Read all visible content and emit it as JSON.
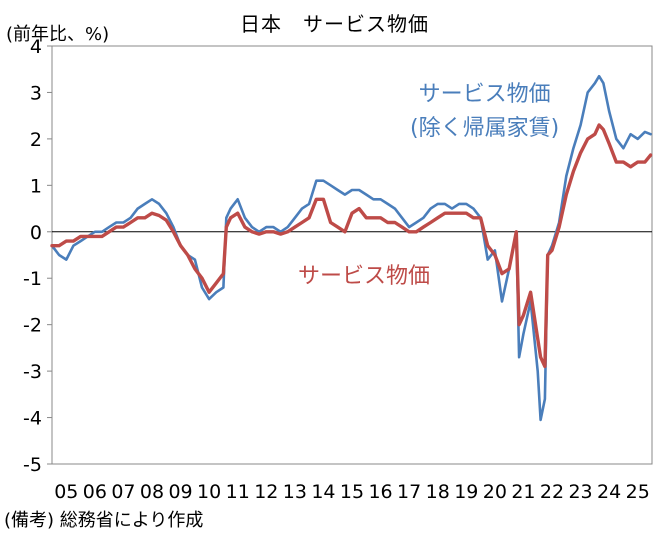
{
  "chart_data": {
    "type": "line",
    "title": "日本　サービス物価",
    "ylabel": "(前年比、%)",
    "source": "(備考) 総務省により作成",
    "ylim": [
      -5,
      4
    ],
    "yticks": [
      "4",
      "3",
      "2",
      "1",
      "0",
      "-1",
      "-2",
      "-3",
      "-4",
      "-5"
    ],
    "xticks": [
      "05",
      "06",
      "07",
      "08",
      "09",
      "10",
      "11",
      "12",
      "13",
      "14",
      "15",
      "16",
      "17",
      "18",
      "19",
      "20",
      "21",
      "22",
      "23",
      "24",
      "25"
    ],
    "grid": false,
    "annotations": {
      "blue_line1": "サービス物価",
      "blue_line2": "(除く帰属家賃)",
      "red": "サービス物価"
    },
    "series": [
      {
        "name": "サービス物価(除く帰属家賃)",
        "color": "#4A7EBB",
        "points": [
          [
            2005.0,
            -0.3
          ],
          [
            2005.25,
            -0.5
          ],
          [
            2005.5,
            -0.6
          ],
          [
            2005.75,
            -0.3
          ],
          [
            2006.0,
            -0.2
          ],
          [
            2006.25,
            -0.1
          ],
          [
            2006.5,
            0.0
          ],
          [
            2006.75,
            0.0
          ],
          [
            2007.0,
            0.1
          ],
          [
            2007.25,
            0.2
          ],
          [
            2007.5,
            0.2
          ],
          [
            2007.75,
            0.3
          ],
          [
            2008.0,
            0.5
          ],
          [
            2008.25,
            0.6
          ],
          [
            2008.5,
            0.7
          ],
          [
            2008.75,
            0.6
          ],
          [
            2009.0,
            0.4
          ],
          [
            2009.25,
            0.1
          ],
          [
            2009.5,
            -0.3
          ],
          [
            2009.75,
            -0.5
          ],
          [
            2010.0,
            -0.6
          ],
          [
            2010.25,
            -1.2
          ],
          [
            2010.5,
            -1.45
          ],
          [
            2010.75,
            -1.3
          ],
          [
            2011.0,
            -1.2
          ],
          [
            2011.1,
            0.3
          ],
          [
            2011.25,
            0.5
          ],
          [
            2011.5,
            0.7
          ],
          [
            2011.75,
            0.3
          ],
          [
            2012.0,
            0.1
          ],
          [
            2012.25,
            0.0
          ],
          [
            2012.5,
            0.1
          ],
          [
            2012.75,
            0.1
          ],
          [
            2013.0,
            0.0
          ],
          [
            2013.25,
            0.1
          ],
          [
            2013.5,
            0.3
          ],
          [
            2013.75,
            0.5
          ],
          [
            2014.0,
            0.6
          ],
          [
            2014.25,
            1.1
          ],
          [
            2014.5,
            1.1
          ],
          [
            2014.75,
            1.0
          ],
          [
            2015.0,
            0.9
          ],
          [
            2015.25,
            0.8
          ],
          [
            2015.5,
            0.9
          ],
          [
            2015.75,
            0.9
          ],
          [
            2016.0,
            0.8
          ],
          [
            2016.25,
            0.7
          ],
          [
            2016.5,
            0.7
          ],
          [
            2016.75,
            0.6
          ],
          [
            2017.0,
            0.5
          ],
          [
            2017.25,
            0.3
          ],
          [
            2017.5,
            0.1
          ],
          [
            2017.75,
            0.2
          ],
          [
            2018.0,
            0.3
          ],
          [
            2018.25,
            0.5
          ],
          [
            2018.5,
            0.6
          ],
          [
            2018.75,
            0.6
          ],
          [
            2019.0,
            0.5
          ],
          [
            2019.25,
            0.6
          ],
          [
            2019.5,
            0.6
          ],
          [
            2019.75,
            0.5
          ],
          [
            2020.0,
            0.3
          ],
          [
            2020.25,
            -0.6
          ],
          [
            2020.5,
            -0.4
          ],
          [
            2020.75,
            -1.5
          ],
          [
            2021.0,
            -0.8
          ],
          [
            2021.25,
            0.0
          ],
          [
            2021.35,
            -2.7
          ],
          [
            2021.5,
            -2.2
          ],
          [
            2021.75,
            -1.5
          ],
          [
            2022.0,
            -3.0
          ],
          [
            2022.1,
            -4.05
          ],
          [
            2022.25,
            -3.6
          ],
          [
            2022.35,
            -0.5
          ],
          [
            2022.5,
            -0.3
          ],
          [
            2022.75,
            0.2
          ],
          [
            2023.0,
            1.2
          ],
          [
            2023.25,
            1.8
          ],
          [
            2023.5,
            2.3
          ],
          [
            2023.75,
            3.0
          ],
          [
            2024.0,
            3.2
          ],
          [
            2024.15,
            3.35
          ],
          [
            2024.3,
            3.2
          ],
          [
            2024.5,
            2.6
          ],
          [
            2024.75,
            2.0
          ],
          [
            2025.0,
            1.8
          ],
          [
            2025.25,
            2.1
          ],
          [
            2025.5,
            2.0
          ],
          [
            2025.75,
            2.15
          ],
          [
            2025.95,
            2.1
          ]
        ]
      },
      {
        "name": "サービス物価",
        "color": "#BE4B48",
        "points": [
          [
            2005.0,
            -0.3
          ],
          [
            2005.25,
            -0.3
          ],
          [
            2005.5,
            -0.2
          ],
          [
            2005.75,
            -0.2
          ],
          [
            2006.0,
            -0.1
          ],
          [
            2006.25,
            -0.1
          ],
          [
            2006.5,
            -0.1
          ],
          [
            2006.75,
            -0.1
          ],
          [
            2007.0,
            0.0
          ],
          [
            2007.25,
            0.1
          ],
          [
            2007.5,
            0.1
          ],
          [
            2007.75,
            0.2
          ],
          [
            2008.0,
            0.3
          ],
          [
            2008.25,
            0.3
          ],
          [
            2008.5,
            0.4
          ],
          [
            2008.75,
            0.35
          ],
          [
            2009.0,
            0.25
          ],
          [
            2009.25,
            0.0
          ],
          [
            2009.5,
            -0.3
          ],
          [
            2009.75,
            -0.5
          ],
          [
            2010.0,
            -0.8
          ],
          [
            2010.25,
            -1.0
          ],
          [
            2010.5,
            -1.3
          ],
          [
            2010.75,
            -1.1
          ],
          [
            2011.0,
            -0.9
          ],
          [
            2011.1,
            0.1
          ],
          [
            2011.25,
            0.3
          ],
          [
            2011.5,
            0.4
          ],
          [
            2011.75,
            0.1
          ],
          [
            2012.0,
            0.0
          ],
          [
            2012.25,
            -0.05
          ],
          [
            2012.5,
            0.0
          ],
          [
            2012.75,
            0.0
          ],
          [
            2013.0,
            -0.05
          ],
          [
            2013.25,
            0.0
          ],
          [
            2013.5,
            0.1
          ],
          [
            2013.75,
            0.2
          ],
          [
            2014.0,
            0.3
          ],
          [
            2014.25,
            0.7
          ],
          [
            2014.5,
            0.7
          ],
          [
            2014.75,
            0.2
          ],
          [
            2015.0,
            0.1
          ],
          [
            2015.25,
            0.0
          ],
          [
            2015.5,
            0.4
          ],
          [
            2015.75,
            0.5
          ],
          [
            2016.0,
            0.3
          ],
          [
            2016.25,
            0.3
          ],
          [
            2016.5,
            0.3
          ],
          [
            2016.75,
            0.2
          ],
          [
            2017.0,
            0.2
          ],
          [
            2017.25,
            0.1
          ],
          [
            2017.5,
            0.0
          ],
          [
            2017.75,
            0.0
          ],
          [
            2018.0,
            0.1
          ],
          [
            2018.25,
            0.2
          ],
          [
            2018.5,
            0.3
          ],
          [
            2018.75,
            0.4
          ],
          [
            2019.0,
            0.4
          ],
          [
            2019.25,
            0.4
          ],
          [
            2019.5,
            0.4
          ],
          [
            2019.75,
            0.3
          ],
          [
            2020.0,
            0.3
          ],
          [
            2020.25,
            -0.3
          ],
          [
            2020.5,
            -0.5
          ],
          [
            2020.75,
            -0.9
          ],
          [
            2021.0,
            -0.8
          ],
          [
            2021.25,
            0.0
          ],
          [
            2021.35,
            -2.0
          ],
          [
            2021.5,
            -1.8
          ],
          [
            2021.75,
            -1.3
          ],
          [
            2022.0,
            -2.3
          ],
          [
            2022.1,
            -2.7
          ],
          [
            2022.25,
            -2.9
          ],
          [
            2022.35,
            -0.5
          ],
          [
            2022.5,
            -0.4
          ],
          [
            2022.75,
            0.1
          ],
          [
            2023.0,
            0.8
          ],
          [
            2023.25,
            1.3
          ],
          [
            2023.5,
            1.7
          ],
          [
            2023.75,
            2.0
          ],
          [
            2024.0,
            2.1
          ],
          [
            2024.15,
            2.3
          ],
          [
            2024.3,
            2.2
          ],
          [
            2024.5,
            1.9
          ],
          [
            2024.75,
            1.5
          ],
          [
            2025.0,
            1.5
          ],
          [
            2025.25,
            1.4
          ],
          [
            2025.5,
            1.5
          ],
          [
            2025.75,
            1.5
          ],
          [
            2025.95,
            1.65
          ]
        ]
      }
    ]
  }
}
